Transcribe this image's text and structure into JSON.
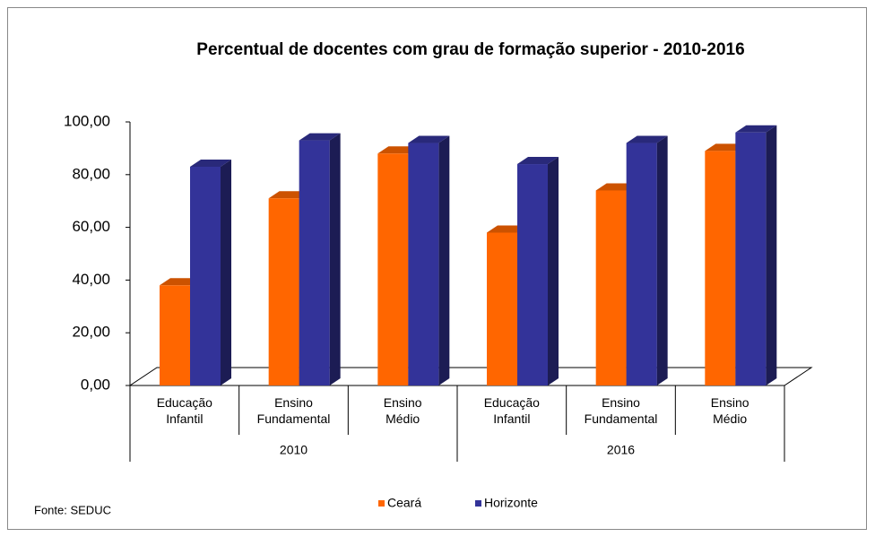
{
  "chart_data": {
    "type": "bar3d",
    "title": "Percentual de docentes com grau de formação superior - 2010-2016",
    "source": "Fonte: SEDUC",
    "categories": [
      "Educação Infantil",
      "Ensino Fundamental",
      "Ensino Médio",
      "Educação Infantil",
      "Ensino Fundamental",
      "Ensino Médio"
    ],
    "groups": [
      {
        "label": "2010",
        "size": 3
      },
      {
        "label": "2016",
        "size": 3
      }
    ],
    "series": [
      {
        "name": "Ceará",
        "color": "#ff6600",
        "values": [
          38,
          71,
          88,
          58,
          74,
          89
        ]
      },
      {
        "name": "Horizonte",
        "color": "#333399",
        "values": [
          83,
          93,
          92,
          84,
          92,
          96
        ]
      }
    ],
    "ylim": [
      0,
      100
    ],
    "yticks": [
      {
        "value": 0,
        "label": "0,00"
      },
      {
        "value": 20,
        "label": "20,00"
      },
      {
        "value": 40,
        "label": "40,00"
      },
      {
        "value": 60,
        "label": "60,00"
      },
      {
        "value": 80,
        "label": "80,00"
      },
      {
        "value": 100,
        "label": "100,00"
      }
    ],
    "legend": "bottom"
  }
}
